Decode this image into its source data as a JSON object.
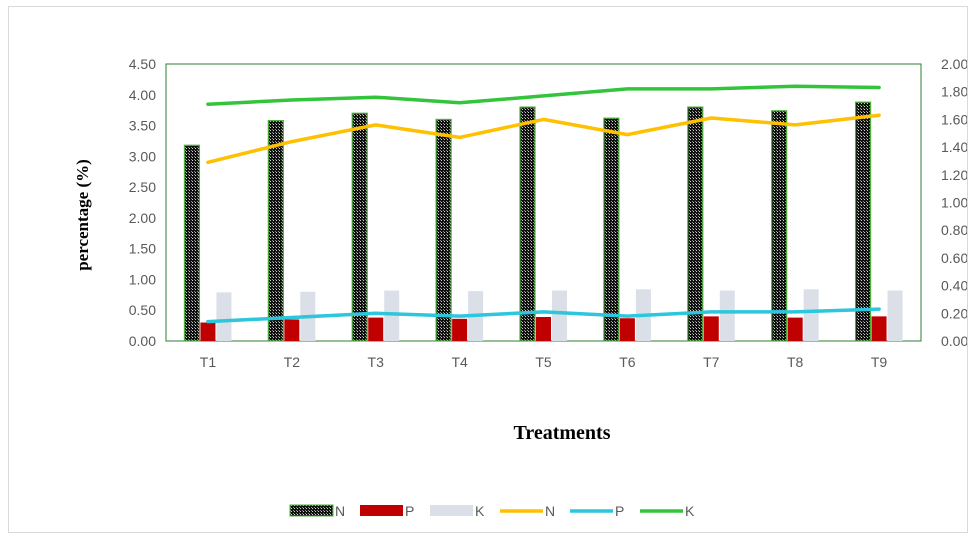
{
  "chart_data": {
    "type": "bar",
    "categories": [
      "T1",
      "T2",
      "T3",
      "T4",
      "T5",
      "T6",
      "T7",
      "T8",
      "T9"
    ],
    "xlabel": "Treatments",
    "ylabel": "percentage (%)",
    "ylim": [
      0,
      4.5
    ],
    "y2lim": [
      0,
      2.0
    ],
    "yticks": [
      "0.00",
      "0.50",
      "1.00",
      "1.50",
      "2.00",
      "2.50",
      "3.00",
      "3.50",
      "4.00",
      "4.50"
    ],
    "y2ticks": [
      "0.00",
      "0.20",
      "0.40",
      "0.60",
      "0.80",
      "1.00",
      "1.20",
      "1.40",
      "1.60",
      "1.80",
      "2.00"
    ],
    "bar_series": [
      {
        "name": "N",
        "axis": "left",
        "color": "#1a1a1a",
        "border": "#4caf3a",
        "values": [
          3.18,
          3.58,
          3.7,
          3.6,
          3.8,
          3.62,
          3.8,
          3.74,
          3.88
        ]
      },
      {
        "name": "P",
        "axis": "left",
        "color": "#c00000",
        "values": [
          0.3,
          0.35,
          0.38,
          0.36,
          0.39,
          0.37,
          0.4,
          0.38,
          0.4
        ]
      },
      {
        "name": "K",
        "axis": "left",
        "color": "#dadfe8",
        "values": [
          0.79,
          0.8,
          0.82,
          0.81,
          0.82,
          0.84,
          0.82,
          0.84,
          0.82
        ]
      }
    ],
    "line_series": [
      {
        "name": "N",
        "axis": "right",
        "color": "#ffc000",
        "values": [
          1.29,
          1.44,
          1.56,
          1.47,
          1.6,
          1.49,
          1.61,
          1.56,
          1.63
        ]
      },
      {
        "name": "P",
        "axis": "right",
        "color": "#2cc6dd",
        "values": [
          0.14,
          0.17,
          0.2,
          0.18,
          0.21,
          0.18,
          0.21,
          0.21,
          0.23
        ]
      },
      {
        "name": "K",
        "axis": "right",
        "color": "#34c43c",
        "values": [
          1.71,
          1.74,
          1.76,
          1.72,
          1.77,
          1.82,
          1.82,
          1.84,
          1.83
        ]
      }
    ],
    "legend_position": "bottom",
    "grid": false
  }
}
